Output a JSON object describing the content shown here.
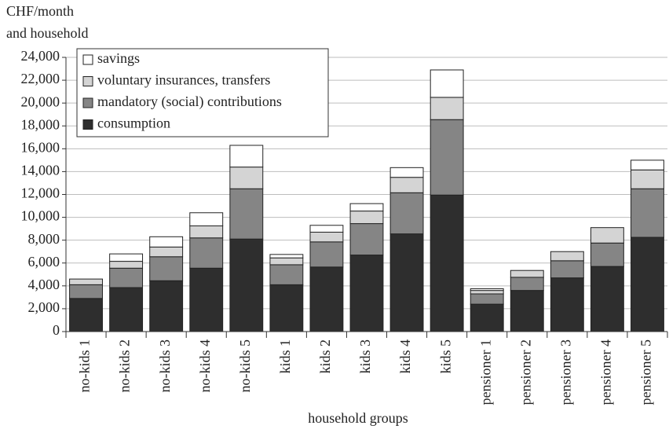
{
  "chart_data": {
    "type": "stacked_bar",
    "ylabel": [
      "CHF/month",
      "and household"
    ],
    "xlabel": "household groups",
    "categories": [
      "no-kids 1",
      "no-kids 2",
      "no-kids 3",
      "no-kids 4",
      "no-kids 5",
      "kids 1",
      "kids 2",
      "kids 3",
      "kids 4",
      "kids 5",
      "pensioner 1",
      "pensioner 2",
      "pensioner 3",
      "pensioner 4",
      "pensioner 5"
    ],
    "series": [
      {
        "name": "consumption",
        "color": "#2e2e2e",
        "values": [
          2900,
          3850,
          4450,
          5550,
          8100,
          4100,
          5650,
          6700,
          8550,
          11950,
          2400,
          3600,
          4700,
          5700,
          8250
        ]
      },
      {
        "name": "mandatory (social) contributions",
        "color": "#858585",
        "values": [
          1200,
          1700,
          2100,
          2650,
          4400,
          1750,
          2200,
          2750,
          3600,
          6600,
          900,
          1150,
          1500,
          2050,
          4250
        ]
      },
      {
        "name": "voluntary insurances, transfers",
        "color": "#d4d4d4",
        "values": [
          500,
          600,
          850,
          1050,
          1900,
          600,
          850,
          1100,
          1350,
          1950,
          300,
          600,
          800,
          1350,
          1650
        ]
      },
      {
        "name": "savings",
        "color": "#ffffff",
        "values": [
          0,
          650,
          900,
          1150,
          1900,
          300,
          600,
          650,
          850,
          2400,
          150,
          0,
          0,
          0,
          850
        ]
      }
    ],
    "ylim": [
      0,
      24000
    ],
    "yticks": [
      0,
      {
        "value": 2000,
        "label": "2,000"
      },
      {
        "value": 4000,
        "label": "4,000"
      },
      {
        "value": 6000,
        "label": "6,000"
      },
      {
        "value": 8000,
        "label": "8,000"
      },
      {
        "value": 10000,
        "label": "10,000"
      },
      {
        "value": 12000,
        "label": "12,000"
      },
      {
        "value": 14000,
        "label": "14,000"
      },
      {
        "value": 16000,
        "label": "16,000"
      },
      {
        "value": 18000,
        "label": "18,000"
      },
      {
        "value": 20000,
        "label": "20,000"
      },
      {
        "value": 22000,
        "label": "22,000"
      },
      {
        "value": 24000,
        "label": "24,000"
      }
    ],
    "grid": true,
    "legend": "upper left"
  }
}
